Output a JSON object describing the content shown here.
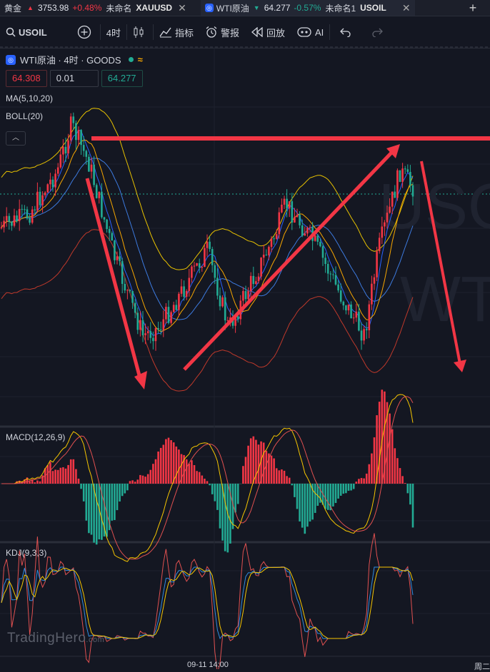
{
  "tabs": [
    {
      "label": "黄金",
      "price": "3753.98",
      "change": "+0.48%",
      "layout": "未命名",
      "symbol": "XAUUSD",
      "direction": "up",
      "active": false
    },
    {
      "label": "WTI原油",
      "price": "64.277",
      "change": "-0.57%",
      "layout": "未命名1",
      "symbol": "USOIL",
      "direction": "down",
      "active": true
    }
  ],
  "toolbar": {
    "symbol": "USOIL",
    "interval": "4时",
    "indicators": "指标",
    "alerts": "警报",
    "replay": "回放",
    "ai": "AI"
  },
  "legend": {
    "title": "WTI原油 · 4时 · GOODS"
  },
  "trade": {
    "sell_price": "64.308",
    "quantity": "0.01",
    "buy_price": "64.277"
  },
  "indicators": {
    "ma": "MA(5,10,20)",
    "boll": "BOLL(20)",
    "macd": "MACD(12,26,9)",
    "kdj": "KDJ(9,3,3)"
  },
  "watermark": {
    "main": "USOIL",
    "sub": "WTI",
    "brand": "TradingHero",
    "brand_suffix": ".com"
  },
  "time_axis": {
    "label": "09-11 14:00",
    "weekday": "周二"
  },
  "colors": {
    "up": "#f23645",
    "down": "#22ab94",
    "accent": "#2962ff",
    "background": "#141722",
    "annotation": "#f23645"
  },
  "chart_data": {
    "type": "candlestick",
    "symbol": "USOIL",
    "interval": "4h",
    "last_price": 64.277,
    "indicators": [
      "MA(5,10,20)",
      "BOLL(20)",
      "MACD(12,26,9)",
      "KDJ(9,3,3)"
    ],
    "annotations": [
      {
        "type": "horizontal-line",
        "color": "#f23645"
      },
      {
        "type": "arrow",
        "direction": "down"
      },
      {
        "type": "arrow",
        "direction": "up"
      },
      {
        "type": "arrow",
        "direction": "down"
      }
    ]
  }
}
